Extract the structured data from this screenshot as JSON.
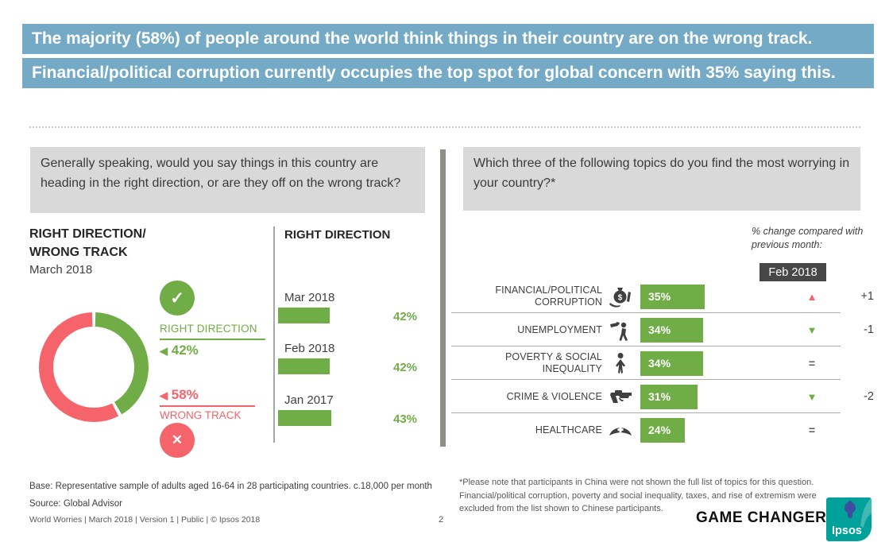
{
  "banner": {
    "line1": "The majority (58%) of people around the world think things in their country are on the wrong track.",
    "line2": "Financial/political corruption currently occupies the top spot for global concern with 35% saying this."
  },
  "colors": {
    "banner_blue": "#74aac6",
    "green": "#70ad47",
    "red": "#f4646a",
    "box_gray": "#d9d9d9",
    "month_box_gray": "#474747",
    "ipsos_teal": "#00a19a",
    "ipsos_navy": "#3e4d9e"
  },
  "left_panel": {
    "question": "Generally speaking, would you say things in this country are heading in the right direction, or are they off on the wrong track?",
    "title_line1": "RIGHT DIRECTION/",
    "title_line2": "WRONG TRACK",
    "subtitle": "March 2018",
    "marker": "◀",
    "check_glyph": "✓",
    "cross_glyph": "✕",
    "right_direction": {
      "label": "RIGHT DIRECTION",
      "pct": "42%"
    },
    "wrong_track": {
      "label": "WRONG TRACK",
      "pct": "58%"
    }
  },
  "trend_panel": {
    "title": "RIGHT DIRECTION",
    "rows": [
      {
        "label": "Mar 2018",
        "value": "42%"
      },
      {
        "label": "Feb 2018",
        "value": "42%"
      },
      {
        "label": "Jan 2017",
        "value": "43%"
      }
    ]
  },
  "worries_panel": {
    "question": "Which three of the following topics do you find the most worrying in your country?*",
    "change_note": "% change compared with previous month:",
    "comparison_month": "Feb 2018",
    "rows": [
      {
        "label": "FINANCIAL/POLITICAL CORRUPTION",
        "icon": "money-bag-icon",
        "value": "35%",
        "change": "+1",
        "direction": "up"
      },
      {
        "label": "UNEMPLOYMENT",
        "icon": "pointing-hand-person-icon",
        "value": "34%",
        "change": "-1",
        "direction": "down"
      },
      {
        "label": "POVERTY & SOCIAL INEQUALITY",
        "icon": "person-icon",
        "value": "34%",
        "change": "",
        "direction": "equal"
      },
      {
        "label": "CRIME & VIOLENCE",
        "icon": "revolver-icon",
        "value": "31%",
        "change": "-2",
        "direction": "down"
      },
      {
        "label": "HEALTHCARE",
        "icon": "nurse-cap-icon",
        "value": "24%",
        "change": "",
        "direction": "equal"
      }
    ]
  },
  "footer": {
    "base_note": "Base: Representative sample of adults aged 16-64 in 28 participating countries. c.18,000 per month",
    "source_note": "Source: Global Advisor",
    "doc_info": "World Worries | March 2018 |  Version 1  |  Public | © Ipsos 2018",
    "page_number": "2",
    "footnote": "*Please note that participants in China were not shown the full list of topics for this question. Financial/political corruption, poverty and  social inequality, taxes, and rise of extremism were excluded from the list shown to Chinese participants.",
    "game_changers": "GAME CHANGERS",
    "ipsos": "Ipsos"
  },
  "chart_data": [
    {
      "type": "pie",
      "title": "RIGHT DIRECTION/WRONG TRACK — March 2018",
      "labels": [
        "Right direction",
        "Wrong track"
      ],
      "values": [
        42,
        58
      ],
      "colors": [
        "#70ad47",
        "#f4646a"
      ],
      "style": "donut"
    },
    {
      "type": "bar",
      "title": "RIGHT DIRECTION",
      "categories": [
        "Mar 2018",
        "Feb 2018",
        "Jan 2017"
      ],
      "values": [
        42,
        42,
        43
      ],
      "orientation": "horizontal",
      "unit": "%"
    },
    {
      "type": "bar",
      "title": "Most worrying topics",
      "categories": [
        "FINANCIAL/POLITICAL CORRUPTION",
        "UNEMPLOYMENT",
        "POVERTY & SOCIAL INEQUALITY",
        "CRIME & VIOLENCE",
        "HEALTHCARE"
      ],
      "values": [
        35,
        34,
        34,
        31,
        24
      ],
      "changes_vs_feb_2018": [
        "+1",
        "-1",
        "=",
        "-2",
        "="
      ],
      "orientation": "horizontal",
      "unit": "%"
    }
  ]
}
